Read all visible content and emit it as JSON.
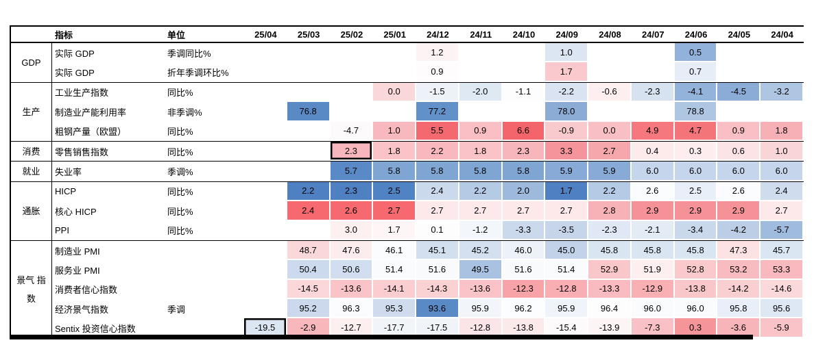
{
  "chart_data": {
    "type": "heatmap",
    "title": "",
    "legend_position": "none",
    "header": {
      "indicator_label": "指标",
      "unit_label": "单位"
    },
    "columns": [
      "25/04",
      "25/03",
      "25/02",
      "25/01",
      "24/12",
      "24/11",
      "24/10",
      "24/09",
      "24/08",
      "24/07",
      "24/06",
      "24/05",
      "24/04"
    ],
    "palette": {
      "high_red": "#F4696F",
      "mid_white": "#FFFFFF",
      "low_blue": "#5A8AC6",
      "highlight_border": "#000000"
    },
    "groups": [
      {
        "label": "GDP",
        "rows": [
          {
            "indicator": "实际 GDP",
            "unit": "季调同比%",
            "values": [
              "",
              "",
              "",
              "",
              "1.2",
              "",
              "",
              "1.0",
              "",
              "",
              "0.5",
              "",
              ""
            ],
            "colors": [
              "",
              "",
              "",
              "",
              "#FDF3F4",
              "",
              "",
              "#DCE6F3",
              "",
              "",
              "#92B2DB",
              "",
              ""
            ],
            "highlight": null
          },
          {
            "indicator": "实际 GDP",
            "unit": "折年季调环比%",
            "values": [
              "",
              "",
              "",
              "",
              "0.9",
              "",
              "",
              "1.7",
              "",
              "",
              "0.7",
              "",
              ""
            ],
            "colors": [
              "",
              "",
              "",
              "",
              "#FEFCFC",
              "",
              "",
              "#F9C9CE",
              "",
              "",
              "#E6EDF7",
              "",
              ""
            ],
            "highlight": null
          }
        ]
      },
      {
        "label": "生产",
        "rows": [
          {
            "indicator": "工业生产指数",
            "unit": "同比%",
            "values": [
              "",
              "",
              "",
              "0.0",
              "-1.5",
              "-2.0",
              "-1.1",
              "-2.2",
              "-0.6",
              "-2.3",
              "-4.1",
              "-4.5",
              "-3.2"
            ],
            "colors": [
              "",
              "",
              "",
              "#FAD7D9",
              "#EDF2F9",
              "#DFE9F4",
              "#FDFDFE",
              "#D9E3F1",
              "#FDEFF0",
              "#D7E2F0",
              "#94B3DB",
              "#8BACD6",
              "#AFC6E3"
            ],
            "highlight": null
          },
          {
            "indicator": "制造业产能利用率",
            "unit": "非季调%",
            "values": [
              "",
              "76.8",
              "",
              "",
              "77.2",
              "",
              "",
              "78.0",
              "",
              "",
              "78.8",
              "",
              ""
            ],
            "colors": [
              "",
              "#5A8AC6",
              "",
              "",
              "#6290C9",
              "",
              "",
              "#8CACD6",
              "",
              "",
              "#AEC6E2",
              "",
              ""
            ],
            "highlight": null
          },
          {
            "indicator": "粗钢产量（欧盟）",
            "unit": "同比%",
            "values": [
              "",
              "",
              "-4.7",
              "1.0",
              "5.5",
              "0.9",
              "6.6",
              "-0.9",
              "0.0",
              "4.9",
              "4.7",
              "0.9",
              "1.8"
            ],
            "colors": [
              "",
              "",
              "#FCFAFB",
              "#F8B9BE",
              "#F4696F",
              "#F9BFC4",
              "#F4646B",
              "#F9CACD",
              "#F8C0C4",
              "#F4787D",
              "#F47579",
              "#F9BFC4",
              "#F7B0B5"
            ],
            "highlight": null
          }
        ]
      },
      {
        "label": "消费",
        "rows": [
          {
            "indicator": "零售销售指数",
            "unit": "同比%",
            "values": [
              "",
              "",
              "2.3",
              "1.8",
              "2.2",
              "1.8",
              "2.3",
              "3.3",
              "2.7",
              "0.4",
              "0.3",
              "0.6",
              "1.0"
            ],
            "colors": [
              "",
              "",
              "#F7B6BB",
              "#F9C3C7",
              "#F8B8BD",
              "#F9C3C7",
              "#F7B6BB",
              "#F5959B",
              "#F6A7AC",
              "#FDEBEC",
              "#FDEDEE",
              "#FCE4E6",
              "#FAD5D7"
            ],
            "highlight": 2
          }
        ]
      },
      {
        "label": "就业",
        "rows": [
          {
            "indicator": "失业率",
            "unit": "季调%",
            "values": [
              "",
              "",
              "5.7",
              "5.8",
              "5.8",
              "5.8",
              "5.8",
              "5.9",
              "5.9",
              "6.0",
              "6.0",
              "6.0",
              "6.0"
            ],
            "colors": [
              "",
              "",
              "#5A8AC6",
              "#7FA5D3",
              "#7FA5D3",
              "#7FA5D3",
              "#7FA5D3",
              "#87AAD6",
              "#87AAD6",
              "#C5D5EB",
              "#C5D5EB",
              "#C5D5EB",
              "#C5D5EB"
            ],
            "highlight": null
          }
        ]
      },
      {
        "label": "通胀",
        "rows": [
          {
            "indicator": "HICP",
            "unit": "同比%",
            "values": [
              "",
              "2.2",
              "2.3",
              "2.5",
              "2.4",
              "2.2",
              "2.0",
              "1.7",
              "2.2",
              "2.6",
              "2.5",
              "2.6",
              "2.4"
            ],
            "colors": [
              "",
              "#4E80C2",
              "#4E80C2",
              "#5083C3",
              "#CBD9EC",
              "#B5CAE5",
              "#9DBADC",
              "#4E80C2",
              "#B5CAE5",
              "#FBFCFD",
              "#E9EFF8",
              "#FBFCFD",
              "#CEDCEE"
            ],
            "highlight": null
          },
          {
            "indicator": "核心 HICP",
            "unit": "同比%",
            "values": [
              "",
              "2.4",
              "2.6",
              "2.7",
              "2.7",
              "2.7",
              "2.7",
              "2.7",
              "2.8",
              "2.9",
              "2.9",
              "2.9",
              "2.7"
            ],
            "colors": [
              "",
              "#F5696F",
              "#F5696F",
              "#F5696F",
              "#FDE9EA",
              "#FDE9EA",
              "#FDE9EA",
              "#FDE9EA",
              "#F7B2B7",
              "#F59297",
              "#F59297",
              "#F59297",
              "#FDE9EA"
            ],
            "highlight": null
          },
          {
            "indicator": "PPI",
            "unit": "同比%",
            "values": [
              "",
              "",
              "3.0",
              "1.7",
              "0.1",
              "-1.2",
              "-3.3",
              "-3.5",
              "-2.3",
              "-2.1",
              "-3.4",
              "-4.2",
              "-5.7"
            ],
            "colors": [
              "",
              "",
              "#FCF0F1",
              "#FEF6F6",
              "#FDFDFE",
              "#F3F6FB",
              "#CBD9EC",
              "#C6D5EA",
              "#DFE8F4",
              "#E3EBF5",
              "#CAD8EC",
              "#BCCEE6",
              "#9FBBDD"
            ],
            "highlight": null
          }
        ]
      },
      {
        "label": "景气 指数",
        "rows": [
          {
            "indicator": "制造业 PMI",
            "unit": "",
            "values": [
              "",
              "48.7",
              "47.6",
              "46.1",
              "45.1",
              "45.2",
              "46.0",
              "45.0",
              "45.8",
              "45.8",
              "45.8",
              "47.3",
              "45.7"
            ],
            "colors": [
              "",
              "#FAD8DA",
              "#FDECED",
              "#FBFCFD",
              "#D2DFEF",
              "#D4E0F0",
              "#EDF2F9",
              "#C2D3E9",
              "#DAE5F2",
              "#DAE5F2",
              "#DAE5F2",
              "#FCE2E3",
              "#DBE6F3"
            ],
            "highlight": null
          },
          {
            "indicator": "服务业 PMI",
            "unit": "",
            "values": [
              "",
              "50.4",
              "50.6",
              "51.4",
              "51.6",
              "49.5",
              "51.6",
              "51.4",
              "52.9",
              "51.9",
              "52.8",
              "53.2",
              "53.3"
            ],
            "colors": [
              "",
              "#CCDAED",
              "#D1DEEF",
              "#FAFBFD",
              "#F8FAFC",
              "#A9C2E1",
              "#F8FAFC",
              "#FAFBFD",
              "#F9C6CA",
              "#FDEEEF",
              "#F9C9CC",
              "#F8BCC0",
              "#F8BABF"
            ],
            "highlight": null
          },
          {
            "indicator": "消费者信心指数",
            "unit": "",
            "values": [
              "",
              "-14.5",
              "-13.6",
              "-14.1",
              "-14.3",
              "-13.6",
              "-12.3",
              "-12.8",
              "-13.3",
              "-12.9",
              "-13.8",
              "-14.2",
              "-14.6"
            ],
            "colors": [
              "",
              "#FBD7D9",
              "#F9C3C7",
              "#FACDD0",
              "#FAD2D4",
              "#F9C3C7",
              "#F7A3A8",
              "#F8AEB3",
              "#F9BBC0",
              "#F8B0B5",
              "#F9C7CA",
              "#FACFD2",
              "#FBD9DB"
            ],
            "highlight": null
          },
          {
            "indicator": "经济景气指数",
            "unit": "季调",
            "values": [
              "",
              "95.2",
              "96.3",
              "95.3",
              "93.6",
              "95.9",
              "96.2",
              "95.9",
              "96.4",
              "96.0",
              "96.0",
              "95.8",
              "95.6"
            ],
            "colors": [
              "",
              "#CCD9EC",
              "#FBFCFD",
              "#CFDCEE",
              "#5A8AC6",
              "#F2F6FB",
              "#FCFDFE",
              "#EFF4FA",
              "#FDFDFE",
              "#FAFBFD",
              "#FAFBFD",
              "#E9EFF8",
              "#DEE8F4"
            ],
            "highlight": null
          },
          {
            "indicator": "Sentix 投资信心指数",
            "unit": "",
            "values": [
              "-19.5",
              "-2.9",
              "-12.7",
              "-17.7",
              "-17.5",
              "-12.8",
              "-13.8",
              "-15.4",
              "-13.9",
              "-7.3",
              "0.3",
              "-3.6",
              "-5.9"
            ],
            "colors": [
              "#DCE5F2",
              "#F7B7BB",
              "#FDEFF0",
              "#F1F5FA",
              "#F0F4F9",
              "#FCE5E7",
              "#FCE9EA",
              "#FDFAFB",
              "#FDF4F5",
              "#F9C1C5",
              "#F59499",
              "#F7B5B9",
              "#F9C3C7"
            ],
            "highlight": 0
          }
        ]
      }
    ]
  }
}
